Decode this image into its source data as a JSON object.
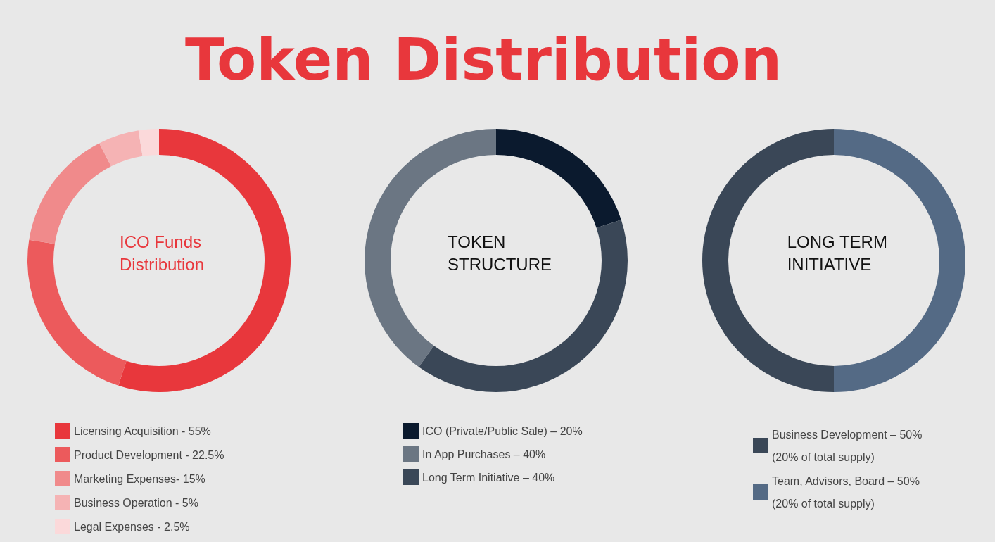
{
  "chart_data": [
    {
      "type": "other",
      "title": "Token Distribution"
    },
    {
      "type": "donut",
      "title": "ICO Funds\nDistribution",
      "legend": "bottom",
      "categories": [
        "Licensing Acquisition - 55%",
        "Product Development - 22.5%",
        "Marketing Expenses- 15%",
        "Business Operation - 5%",
        "Legal Expenses - 2.5%"
      ],
      "values": [
        55,
        22.5,
        15,
        5,
        2.5
      ],
      "colors": [
        "#e8373c",
        "#ec5a5c",
        "#f08a8b",
        "#f5b3b4",
        "#fbd9da"
      ]
    },
    {
      "type": "donut",
      "title": "TOKEN\nSTRUCTURE",
      "legend": "bottom",
      "categories": [
        "ICO (Private/Public Sale) – 20%",
        "In App Purchases – 40%",
        "Long Term Initiative – 40%"
      ],
      "values": [
        20,
        40,
        40
      ],
      "colors": [
        "#0b1a2e",
        "#6b7683",
        "#3a4757"
      ]
    },
    {
      "type": "donut",
      "title": "LONG TERM\nINITIATIVE",
      "legend": "bottom",
      "categories": [
        "Business Development – 50%\n(20% of total supply)",
        "Team, Advisors, Board – 50%\n(20% of total supply)"
      ],
      "values": [
        50,
        50
      ],
      "colors": [
        "#3a4757",
        "#546a85"
      ]
    }
  ]
}
